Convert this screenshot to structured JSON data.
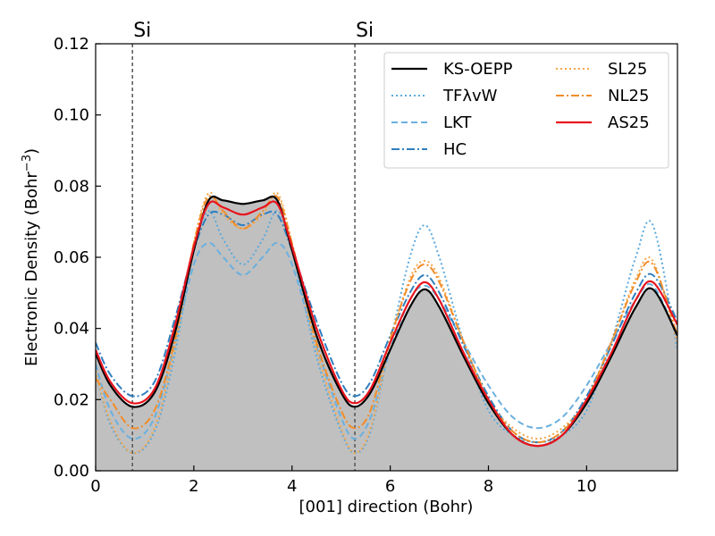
{
  "chart_data": {
    "type": "line",
    "title": "",
    "xlabel": "[001] direction (Bohr)",
    "ylabel": "Electronic Density (Bohr",
    "ylabel_sup": "−3",
    "ylabel_close": ")",
    "xlim": [
      0,
      11.85
    ],
    "ylim": [
      0,
      0.12
    ],
    "xticks": [
      0,
      2,
      4,
      6,
      8,
      10
    ],
    "xtick_labels": [
      "0",
      "2",
      "4",
      "6",
      "8",
      "10"
    ],
    "yticks": [
      0.0,
      0.02,
      0.04,
      0.06,
      0.08,
      0.1,
      0.12
    ],
    "ytick_labels": [
      "0.00",
      "0.02",
      "0.04",
      "0.06",
      "0.08",
      "0.10",
      "0.12"
    ],
    "grid": false,
    "legend_position": "top-right",
    "atoms": [
      {
        "label": "Si",
        "x": 0.75
      },
      {
        "label": "Si",
        "x": 5.28
      }
    ],
    "x": [
      0,
      0.3,
      0.75,
      1.2,
      1.6,
      2.0,
      2.3,
      2.6,
      3.0,
      3.4,
      3.7,
      4.0,
      4.5,
      5.0,
      5.28,
      5.6,
      6.0,
      6.4,
      6.7,
      7.0,
      7.5,
      8.0,
      8.5,
      9.0,
      9.5,
      10.0,
      10.5,
      11.0,
      11.35,
      11.85
    ],
    "series": [
      {
        "name": "KS-OEPP",
        "color": "#000000",
        "dash": "solid",
        "width": 2.2,
        "fill": true,
        "values": [
          0.033,
          0.024,
          0.018,
          0.022,
          0.038,
          0.062,
          0.076,
          0.076,
          0.075,
          0.076,
          0.076,
          0.062,
          0.038,
          0.022,
          0.018,
          0.022,
          0.034,
          0.046,
          0.051,
          0.046,
          0.032,
          0.019,
          0.01,
          0.007,
          0.01,
          0.019,
          0.032,
          0.046,
          0.051,
          0.038
        ]
      },
      {
        "name": "TFλvW",
        "color": "#5aa9dd",
        "dash": "dotted",
        "width": 2,
        "values": [
          0.028,
          0.013,
          0.005,
          0.011,
          0.032,
          0.062,
          0.073,
          0.065,
          0.058,
          0.065,
          0.073,
          0.062,
          0.032,
          0.011,
          0.005,
          0.011,
          0.036,
          0.06,
          0.069,
          0.06,
          0.036,
          0.017,
          0.01,
          0.008,
          0.01,
          0.017,
          0.036,
          0.06,
          0.069,
          0.034
        ]
      },
      {
        "name": "LKT",
        "color": "#6ab0de",
        "dash": "dashed",
        "width": 2,
        "values": [
          0.03,
          0.017,
          0.009,
          0.015,
          0.035,
          0.058,
          0.064,
          0.06,
          0.055,
          0.06,
          0.064,
          0.058,
          0.035,
          0.015,
          0.009,
          0.015,
          0.034,
          0.048,
          0.052,
          0.048,
          0.036,
          0.024,
          0.015,
          0.012,
          0.015,
          0.024,
          0.036,
          0.048,
          0.052,
          0.038
        ]
      },
      {
        "name": "HC",
        "color": "#2f7fbf",
        "dash": "dashdot",
        "width": 2,
        "values": [
          0.036,
          0.027,
          0.021,
          0.025,
          0.042,
          0.062,
          0.072,
          0.072,
          0.069,
          0.072,
          0.072,
          0.062,
          0.042,
          0.025,
          0.021,
          0.025,
          0.038,
          0.05,
          0.055,
          0.05,
          0.035,
          0.021,
          0.011,
          0.008,
          0.011,
          0.021,
          0.035,
          0.05,
          0.055,
          0.042
        ]
      },
      {
        "name": "SL25",
        "color": "#f5a64a",
        "dash": "dotted",
        "width": 2,
        "values": [
          0.028,
          0.014,
          0.005,
          0.012,
          0.034,
          0.064,
          0.078,
          0.072,
          0.068,
          0.072,
          0.078,
          0.064,
          0.034,
          0.012,
          0.005,
          0.012,
          0.036,
          0.054,
          0.059,
          0.054,
          0.036,
          0.02,
          0.012,
          0.009,
          0.012,
          0.02,
          0.036,
          0.054,
          0.059,
          0.036
        ]
      },
      {
        "name": "NL25",
        "color": "#f28c28",
        "dash": "dashdot",
        "width": 2,
        "values": [
          0.026,
          0.02,
          0.012,
          0.017,
          0.036,
          0.064,
          0.077,
          0.073,
          0.068,
          0.073,
          0.077,
          0.064,
          0.036,
          0.017,
          0.012,
          0.017,
          0.037,
          0.053,
          0.058,
          0.053,
          0.036,
          0.02,
          0.011,
          0.008,
          0.011,
          0.02,
          0.036,
          0.053,
          0.058,
          0.038
        ]
      },
      {
        "name": "AS25",
        "color": "#e8141e",
        "dash": "solid",
        "width": 2.2,
        "values": [
          0.034,
          0.025,
          0.019,
          0.023,
          0.04,
          0.063,
          0.075,
          0.074,
          0.072,
          0.074,
          0.075,
          0.063,
          0.04,
          0.023,
          0.019,
          0.023,
          0.036,
          0.048,
          0.053,
          0.048,
          0.033,
          0.02,
          0.01,
          0.007,
          0.01,
          0.02,
          0.033,
          0.048,
          0.053,
          0.041
        ]
      }
    ],
    "legend_order": [
      "KS-OEPP",
      "TFλvW",
      "LKT",
      "HC",
      "SL25",
      "NL25",
      "AS25"
    ]
  }
}
